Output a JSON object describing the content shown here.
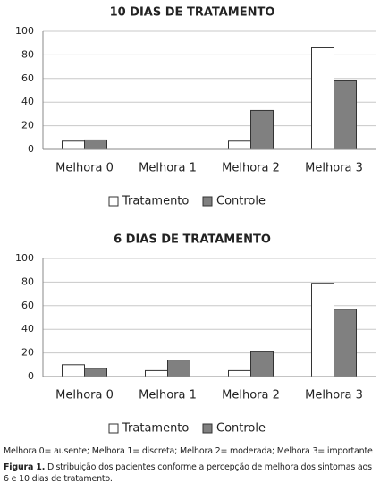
{
  "chart_data": [
    {
      "type": "bar",
      "title": "10 DIAS DE TRATAMENTO",
      "categories": [
        "Melhora 0",
        "Melhora 1",
        "Melhora 2",
        "Melhora 3"
      ],
      "series": [
        {
          "name": "Tratamento",
          "color": "#ffffff",
          "values": [
            7,
            0,
            7,
            86
          ]
        },
        {
          "name": "Controle",
          "color": "#808080",
          "values": [
            8,
            0,
            33,
            58
          ]
        }
      ],
      "ylim": [
        0,
        100
      ],
      "yticks": [
        0,
        20,
        40,
        60,
        80,
        100
      ],
      "grid": true,
      "legend": "bottom"
    },
    {
      "type": "bar",
      "title": "6 DIAS DE TRATAMENTO",
      "categories": [
        "Melhora 0",
        "Melhora 1",
        "Melhora 2",
        "Melhora 3"
      ],
      "series": [
        {
          "name": "Tratamento",
          "color": "#ffffff",
          "values": [
            10,
            5,
            5,
            79
          ]
        },
        {
          "name": "Controle",
          "color": "#808080",
          "values": [
            7,
            14,
            21,
            57
          ]
        }
      ],
      "ylim": [
        0,
        100
      ],
      "yticks": [
        0,
        20,
        40,
        60,
        80,
        100
      ],
      "grid": true,
      "legend": "bottom"
    }
  ],
  "note": "Melhora 0= ausente; Melhora 1= discreta; Melhora 2= moderada; Melhora 3= importante",
  "caption": {
    "label": "Figura 1.",
    "text": "Distribuição dos pacientes conforme a percepção de melhora dos sintomas aos 6 e 10 dias de tratamento."
  }
}
